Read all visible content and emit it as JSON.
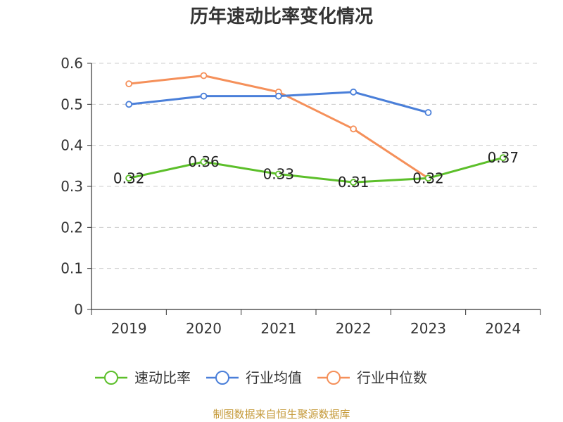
{
  "chart_data": {
    "type": "line",
    "title": "历年速动比率变化情况",
    "xlabel": "",
    "ylabel": "",
    "categories": [
      "2019",
      "2020",
      "2021",
      "2022",
      "2023",
      "2024"
    ],
    "ylim": [
      0,
      0.6
    ],
    "yticks": [
      "0",
      "0.1",
      "0.2",
      "0.3",
      "0.4",
      "0.5",
      "0.6"
    ],
    "grid": true,
    "legend_position": "bottom",
    "series": [
      {
        "name": "速动比率",
        "color": "#5cbf2a",
        "values": [
          0.32,
          0.36,
          0.33,
          0.31,
          0.32,
          0.37
        ],
        "labels": [
          "0.32",
          "0.36",
          "0.33",
          "0.31",
          "0.32",
          "0.37"
        ],
        "show_labels": true
      },
      {
        "name": "行业均值",
        "color": "#4a7fd9",
        "values": [
          0.5,
          0.52,
          0.52,
          0.53,
          0.48,
          null
        ],
        "show_labels": false
      },
      {
        "name": "行业中位数",
        "color": "#f5905a",
        "values": [
          0.55,
          0.57,
          0.53,
          0.44,
          0.32,
          null
        ],
        "show_labels": false
      }
    ]
  },
  "source_text": "制图数据来自恒生聚源数据库"
}
